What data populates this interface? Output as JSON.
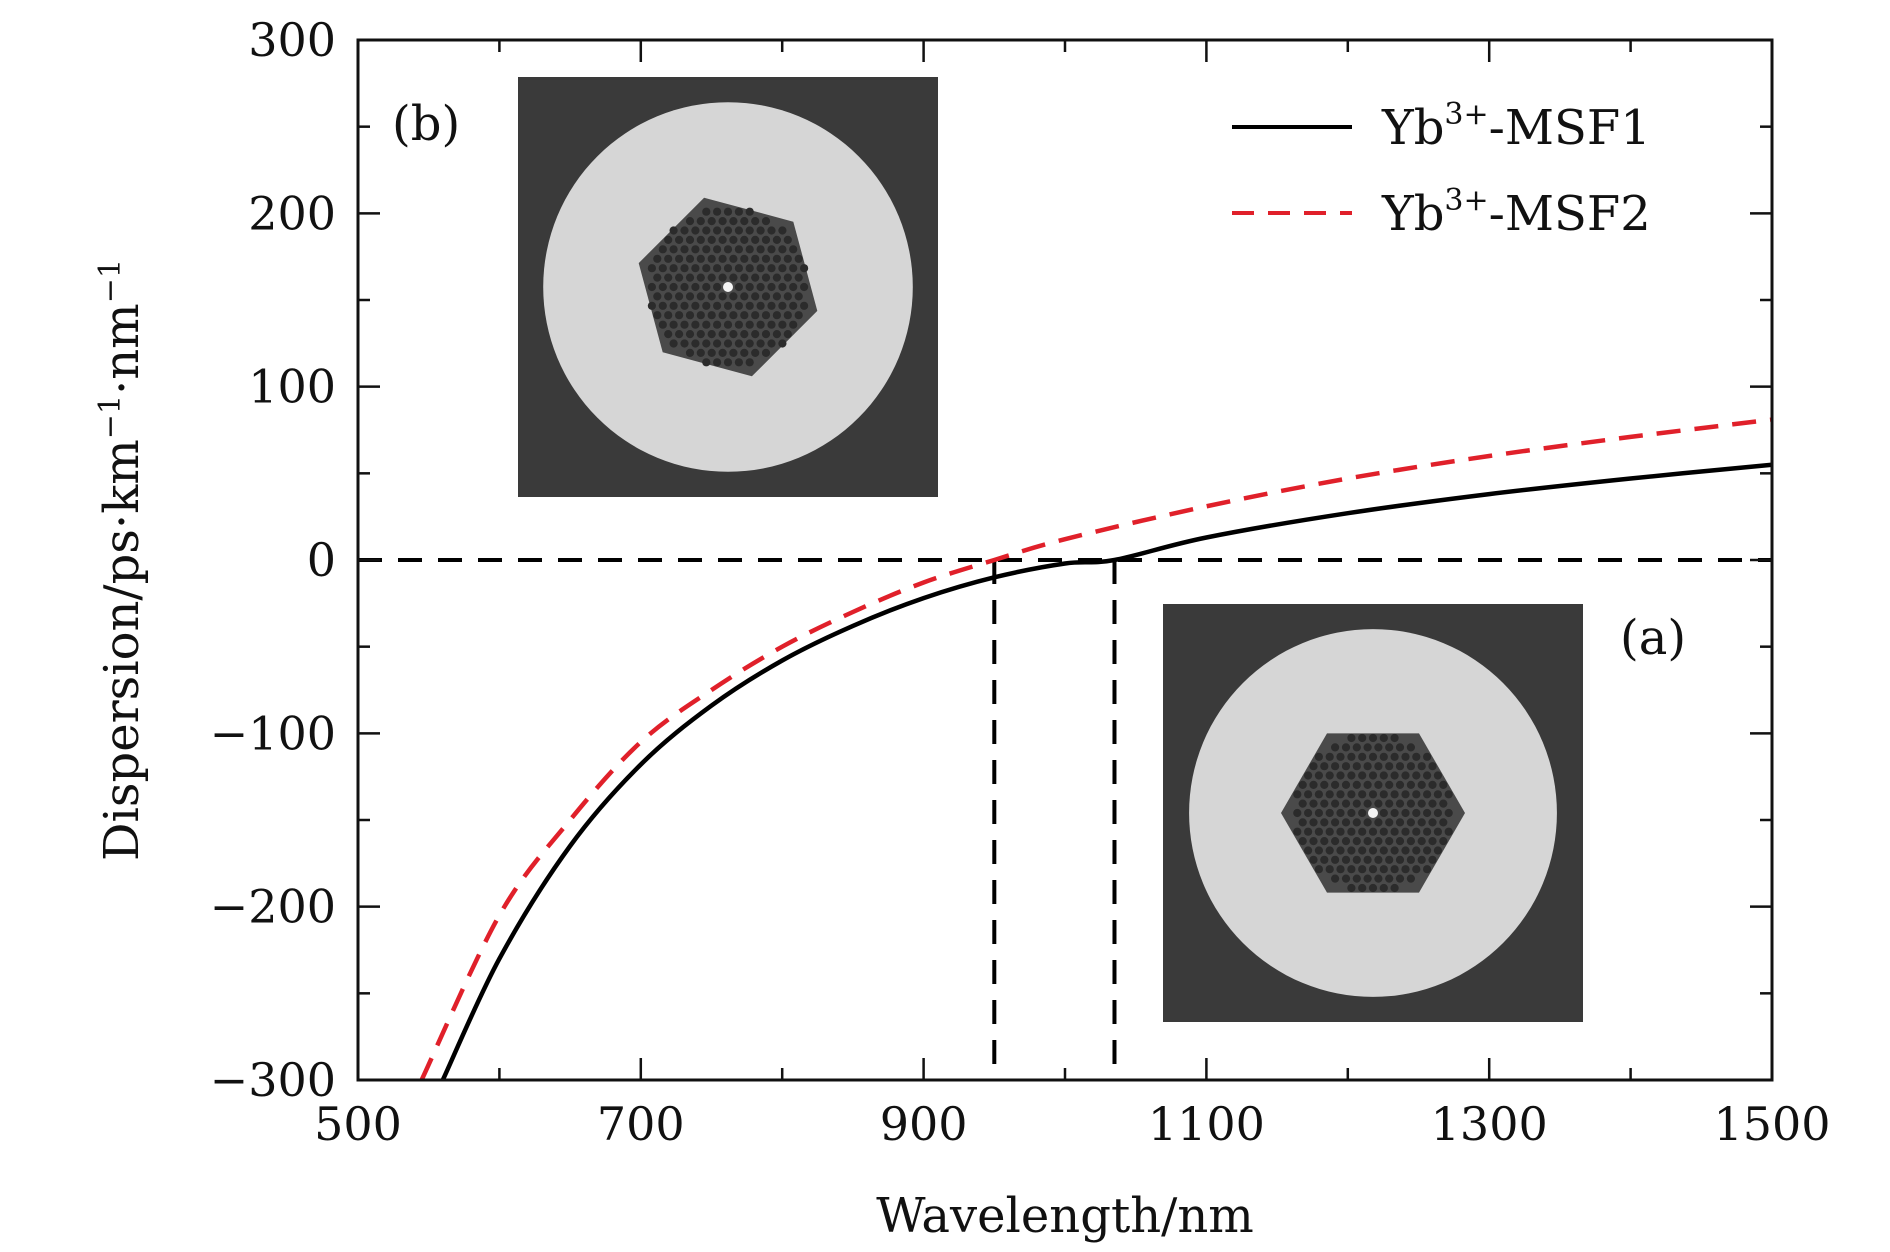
{
  "chart_data": {
    "type": "line",
    "xlabel": "Wavelength/nm",
    "ylabel": "Dispersion/ps·km−1·nm−1",
    "ylabel_parts": {
      "a": "Dispersion/ps·km",
      "sup1": "−1",
      "b": "·nm",
      "sup2": "−1"
    },
    "xlim": [
      500,
      1500
    ],
    "ylim": [
      -300,
      300
    ],
    "x_ticks": [
      500,
      700,
      900,
      1100,
      1300,
      1500
    ],
    "y_ticks": [
      -300,
      -200,
      -100,
      0,
      100,
      200,
      300
    ],
    "x_tick_labels": [
      "500",
      "700",
      "900",
      "1100",
      "1300",
      "1500"
    ],
    "y_tick_labels": [
      "−300",
      "−200",
      "−100",
      "0",
      "100",
      "200",
      "300"
    ],
    "grid": false,
    "legend_position": "top-right",
    "series": [
      {
        "name": "Yb3+-MSF1",
        "name_parts": {
          "base": "Yb",
          "sup": "3+",
          "rest": "-MSF1"
        },
        "color": "#000000",
        "style": "solid",
        "x": [
          560,
          600,
          650,
          700,
          750,
          800,
          850,
          900,
          950,
          1000,
          1035,
          1100,
          1200,
          1300,
          1400,
          1500
        ],
        "y": [
          -300,
          -230,
          -165,
          -118,
          -84,
          -58,
          -38,
          -22,
          -10,
          -2,
          0,
          13,
          27,
          38,
          47,
          55
        ]
      },
      {
        "name": "Yb3+-MSF2",
        "name_parts": {
          "base": "Yb",
          "sup": "3+",
          "rest": "-MSF2"
        },
        "color": "#e0202a",
        "style": "dashed",
        "x": [
          545,
          600,
          650,
          700,
          750,
          800,
          850,
          900,
          950,
          1000,
          1100,
          1200,
          1300,
          1400,
          1500
        ],
        "y": [
          -300,
          -205,
          -150,
          -105,
          -75,
          -50,
          -30,
          -13,
          0,
          12,
          31,
          47,
          60,
          71,
          81
        ]
      }
    ],
    "reference_lines": [
      {
        "orientation": "horizontal",
        "y": 0
      },
      {
        "orientation": "vertical",
        "x": 950
      },
      {
        "orientation": "vertical",
        "x": 1035
      }
    ],
    "annotations": [
      "(a)",
      "(b)"
    ]
  },
  "colors": {
    "axis": "#111111",
    "msf1": "#000000",
    "msf2": "#e0202a",
    "photo_bg": "#3a3a3a",
    "photo_cladding": "#d6d6d6",
    "photo_hole": "#2b2b2b"
  }
}
